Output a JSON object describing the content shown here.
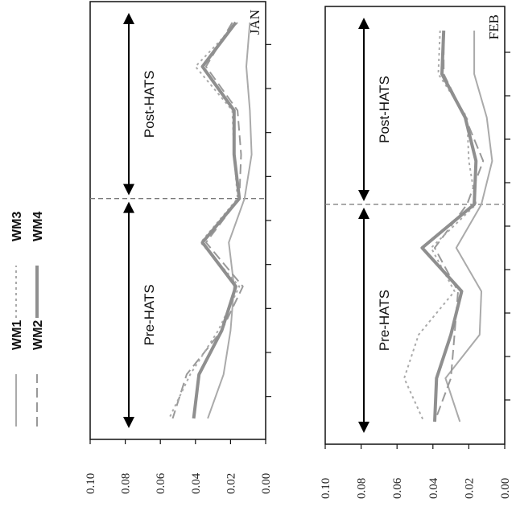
{
  "chart_data": [
    {
      "type": "line",
      "panel_label": "JAN",
      "y_ticks": [
        "0.10",
        "0.08",
        "0.06",
        "0.04",
        "0.02",
        "0.00"
      ],
      "ylim": [
        0,
        0.1
      ],
      "x_count": 9,
      "hats_boundary": 4.5,
      "annotations": [
        {
          "text": "Post-HATS",
          "from": 0,
          "to": 4.5
        },
        {
          "text": "Pre-HATS",
          "from": 4.5,
          "to": 9
        }
      ],
      "series": [
        {
          "name": "WM1",
          "values": [
            0.009,
            0.011,
            0.009,
            0.008,
            0.012,
            0.021,
            0.018,
            0.02,
            0.024,
            0.033
          ]
        },
        {
          "name": "WM2",
          "values": [
            0.019,
            0.034,
            0.016,
            0.014,
            0.015,
            0.034,
            0.013,
            0.025,
            0.045,
            0.053
          ]
        },
        {
          "name": "WM3",
          "values": [
            0.016,
            0.04,
            0.019,
            0.018,
            0.016,
            0.037,
            0.015,
            0.027,
            0.043,
            0.055
          ]
        },
        {
          "name": "WM4",
          "values": [
            0.017,
            0.036,
            0.018,
            0.018,
            0.015,
            0.036,
            0.017,
            0.025,
            0.038,
            0.041
          ]
        }
      ]
    },
    {
      "type": "line",
      "panel_label": "FEB",
      "y_ticks": [
        "0.10",
        "0.08",
        "0.06",
        "0.04",
        "0.02",
        "0.00"
      ],
      "ylim": [
        0,
        0.1
      ],
      "x_count": 9,
      "hats_boundary": 4.5,
      "annotations": [
        {
          "text": "Post-HATS",
          "from": 0,
          "to": 4.5
        },
        {
          "text": "Pre-HATS",
          "from": 4.5,
          "to": 9
        }
      ],
      "series": [
        {
          "name": "WM1",
          "values": [
            0.017,
            0.017,
            0.01,
            0.007,
            0.013,
            0.027,
            0.013,
            0.014,
            0.033,
            0.025
          ]
        },
        {
          "name": "WM2",
          "values": [
            0.034,
            0.034,
            0.022,
            0.012,
            0.021,
            0.039,
            0.026,
            0.028,
            0.03,
            0.039
          ]
        },
        {
          "name": "WM3",
          "values": [
            0.036,
            0.037,
            0.021,
            0.02,
            0.016,
            0.041,
            0.028,
            0.048,
            0.056,
            0.045
          ]
        },
        {
          "name": "WM4",
          "values": [
            0.034,
            0.035,
            0.022,
            0.016,
            0.017,
            0.046,
            0.024,
            0.03,
            0.038,
            0.039
          ]
        }
      ]
    }
  ],
  "legend": [
    {
      "name": "WM1",
      "style": "solid-thin",
      "color": "#aaaaaa"
    },
    {
      "name": "WM2",
      "style": "dashed",
      "color": "#999999"
    },
    {
      "name": "WM3",
      "style": "dotted",
      "color": "#aaaaaa"
    },
    {
      "name": "WM4",
      "style": "solid-thick",
      "color": "#8f8f8f"
    }
  ],
  "colors": {
    "axis": "#111111",
    "boundary": "#777777",
    "arrow": "#000000"
  }
}
